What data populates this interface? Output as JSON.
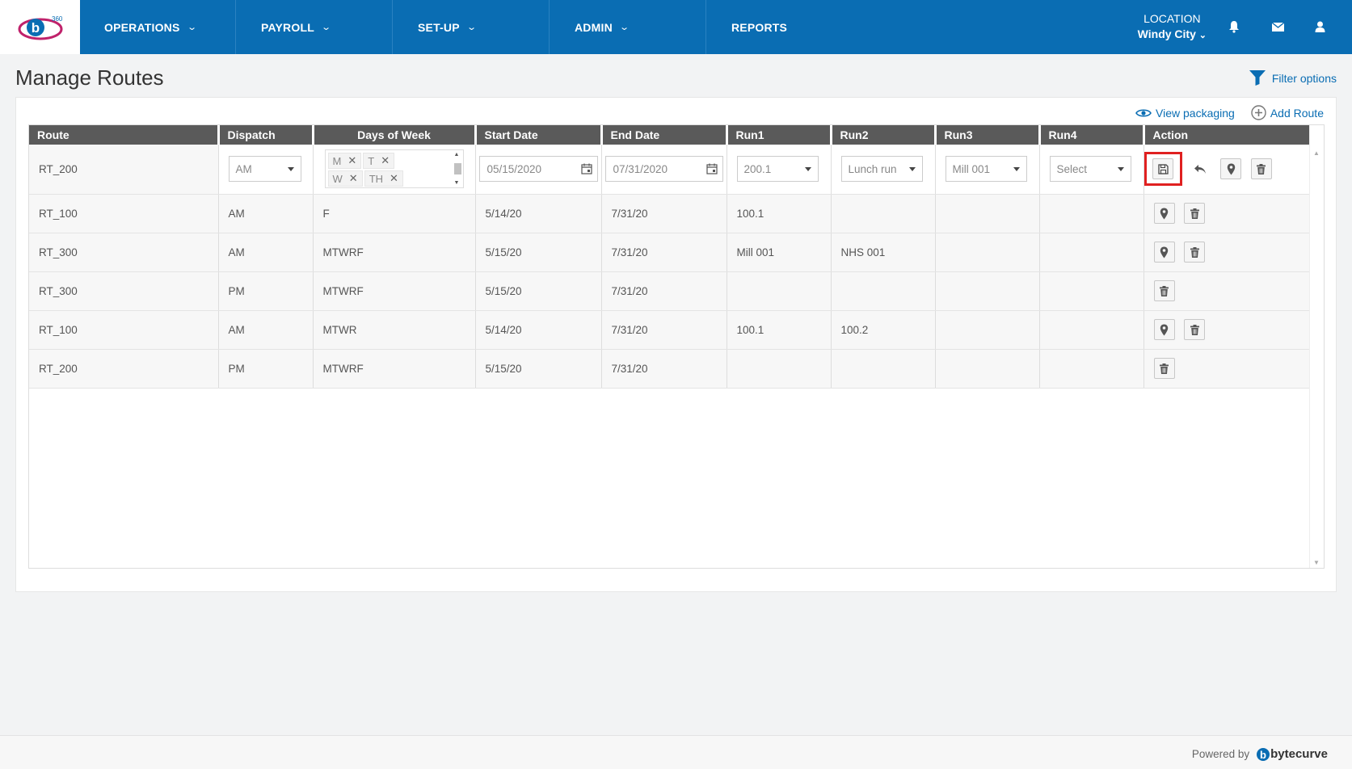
{
  "nav": {
    "items": [
      {
        "label": "OPERATIONS",
        "has_dropdown": true
      },
      {
        "label": "PAYROLL",
        "has_dropdown": true
      },
      {
        "label": "SET-UP",
        "has_dropdown": true
      },
      {
        "label": "ADMIN",
        "has_dropdown": true
      },
      {
        "label": "REPORTS",
        "has_dropdown": false
      }
    ],
    "location_label": "LOCATION",
    "location_value": "Windy City",
    "icons": [
      "bell-icon",
      "envelope-icon",
      "user-icon"
    ],
    "logo_badge": "360"
  },
  "page": {
    "title": "Manage Routes",
    "filter_label": "Filter options",
    "view_packaging_label": "View packaging",
    "add_route_label": "Add Route"
  },
  "table": {
    "columns": [
      "Route",
      "Dispatch",
      "Days of Week",
      "Start Date",
      "End Date",
      "Run1",
      "Run2",
      "Run3",
      "Run4",
      "Action"
    ],
    "edit_row": {
      "route": "RT_200",
      "dispatch": "AM",
      "days": [
        "M",
        "T",
        "W",
        "TH"
      ],
      "start_date": "05/15/2020",
      "end_date": "07/31/2020",
      "run1": "200.1",
      "run2": "Lunch run",
      "run3": "Mill 001",
      "run4": "Select",
      "actions": [
        "save-icon",
        "undo-icon",
        "map-pin-icon",
        "trash-icon"
      ]
    },
    "rows": [
      {
        "route": "RT_100",
        "dispatch": "AM",
        "days": "F",
        "start": "5/14/20",
        "end": "7/31/20",
        "run1": "100.1",
        "run2": "",
        "run3": "",
        "run4": "",
        "actions": [
          "map-pin-icon",
          "trash-icon"
        ]
      },
      {
        "route": "RT_300",
        "dispatch": "AM",
        "days": "MTWRF",
        "start": "5/15/20",
        "end": "7/31/20",
        "run1": "Mill 001",
        "run2": "NHS 001",
        "run3": "",
        "run4": "",
        "actions": [
          "map-pin-icon",
          "trash-icon"
        ]
      },
      {
        "route": "RT_300",
        "dispatch": "PM",
        "days": "MTWRF",
        "start": "5/15/20",
        "end": "7/31/20",
        "run1": "",
        "run2": "",
        "run3": "",
        "run4": "",
        "actions": [
          "trash-icon"
        ]
      },
      {
        "route": "RT_100",
        "dispatch": "AM",
        "days": "MTWR",
        "start": "5/14/20",
        "end": "7/31/20",
        "run1": "100.1",
        "run2": "100.2",
        "run3": "",
        "run4": "",
        "actions": [
          "map-pin-icon",
          "trash-icon"
        ]
      },
      {
        "route": "RT_200",
        "dispatch": "PM",
        "days": "MTWRF",
        "start": "5/15/20",
        "end": "7/31/20",
        "run1": "",
        "run2": "",
        "run3": "",
        "run4": "",
        "actions": [
          "trash-icon"
        ]
      }
    ]
  },
  "footer": {
    "powered_by": "Powered by",
    "brand": "bytecurve"
  },
  "colors": {
    "nav_bg": "#0a6db3",
    "header_bg": "#5a5a5a",
    "highlight": "#e02020"
  }
}
